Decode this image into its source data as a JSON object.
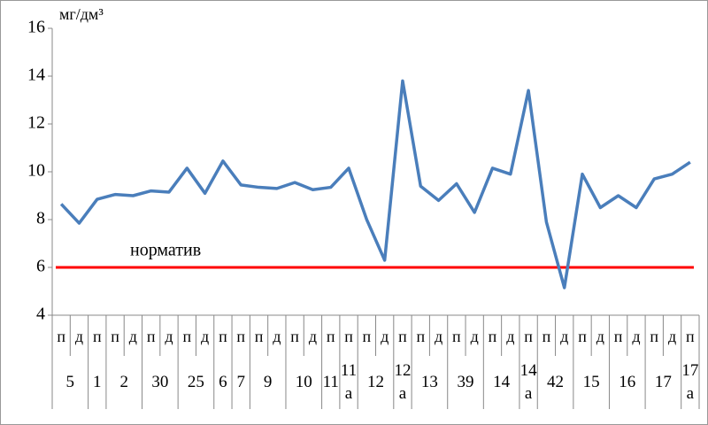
{
  "chart_data": {
    "type": "line",
    "y_label": "мг/дм³",
    "ylim": [
      4,
      16
    ],
    "yticks": [
      4,
      6,
      8,
      10,
      12,
      14,
      16
    ],
    "groups": [
      {
        "label": "5",
        "sub": [
          "п",
          "д"
        ]
      },
      {
        "label": "1",
        "sub": [
          "п"
        ]
      },
      {
        "label": "2",
        "sub": [
          "п",
          "д"
        ]
      },
      {
        "label": "30",
        "sub": [
          "п",
          "д"
        ]
      },
      {
        "label": "25",
        "sub": [
          "п",
          "д"
        ]
      },
      {
        "label": "6",
        "sub": [
          "п"
        ]
      },
      {
        "label": "7",
        "sub": [
          "п"
        ]
      },
      {
        "label": "9",
        "sub": [
          "п",
          "д"
        ]
      },
      {
        "label": "10",
        "sub": [
          "п",
          "д"
        ]
      },
      {
        "label": "11",
        "sub": [
          "п"
        ]
      },
      {
        "label": "11а",
        "sub": [
          "п"
        ]
      },
      {
        "label": "12",
        "sub": [
          "п",
          "д"
        ]
      },
      {
        "label": "12а",
        "sub": [
          "п"
        ]
      },
      {
        "label": "13",
        "sub": [
          "п",
          "д"
        ]
      },
      {
        "label": "39",
        "sub": [
          "п",
          "д"
        ]
      },
      {
        "label": "14",
        "sub": [
          "п",
          "д"
        ]
      },
      {
        "label": "14а",
        "sub": [
          "п"
        ]
      },
      {
        "label": "42",
        "sub": [
          "п",
          "д"
        ]
      },
      {
        "label": "15",
        "sub": [
          "п",
          "д"
        ]
      },
      {
        "label": "16",
        "sub": [
          "п",
          "д"
        ]
      },
      {
        "label": "17",
        "sub": [
          "п",
          "д"
        ]
      },
      {
        "label": "17а",
        "sub": [
          "п"
        ]
      }
    ],
    "series": [
      {
        "color": "#4a7ebb",
        "values": [
          8.65,
          7.85,
          8.85,
          9.05,
          9.0,
          9.2,
          9.15,
          10.15,
          9.1,
          10.45,
          9.45,
          9.35,
          9.3,
          9.55,
          9.25,
          9.35,
          10.15,
          8.0,
          6.3,
          13.8,
          9.4,
          8.8,
          9.5,
          8.3,
          10.15,
          9.9,
          13.4,
          7.9,
          5.15,
          9.9,
          8.5,
          9.0,
          8.5,
          9.7,
          9.9,
          10.4
        ]
      }
    ],
    "norm": {
      "label": "норматив",
      "value": 6,
      "color": "#ff0000"
    }
  }
}
